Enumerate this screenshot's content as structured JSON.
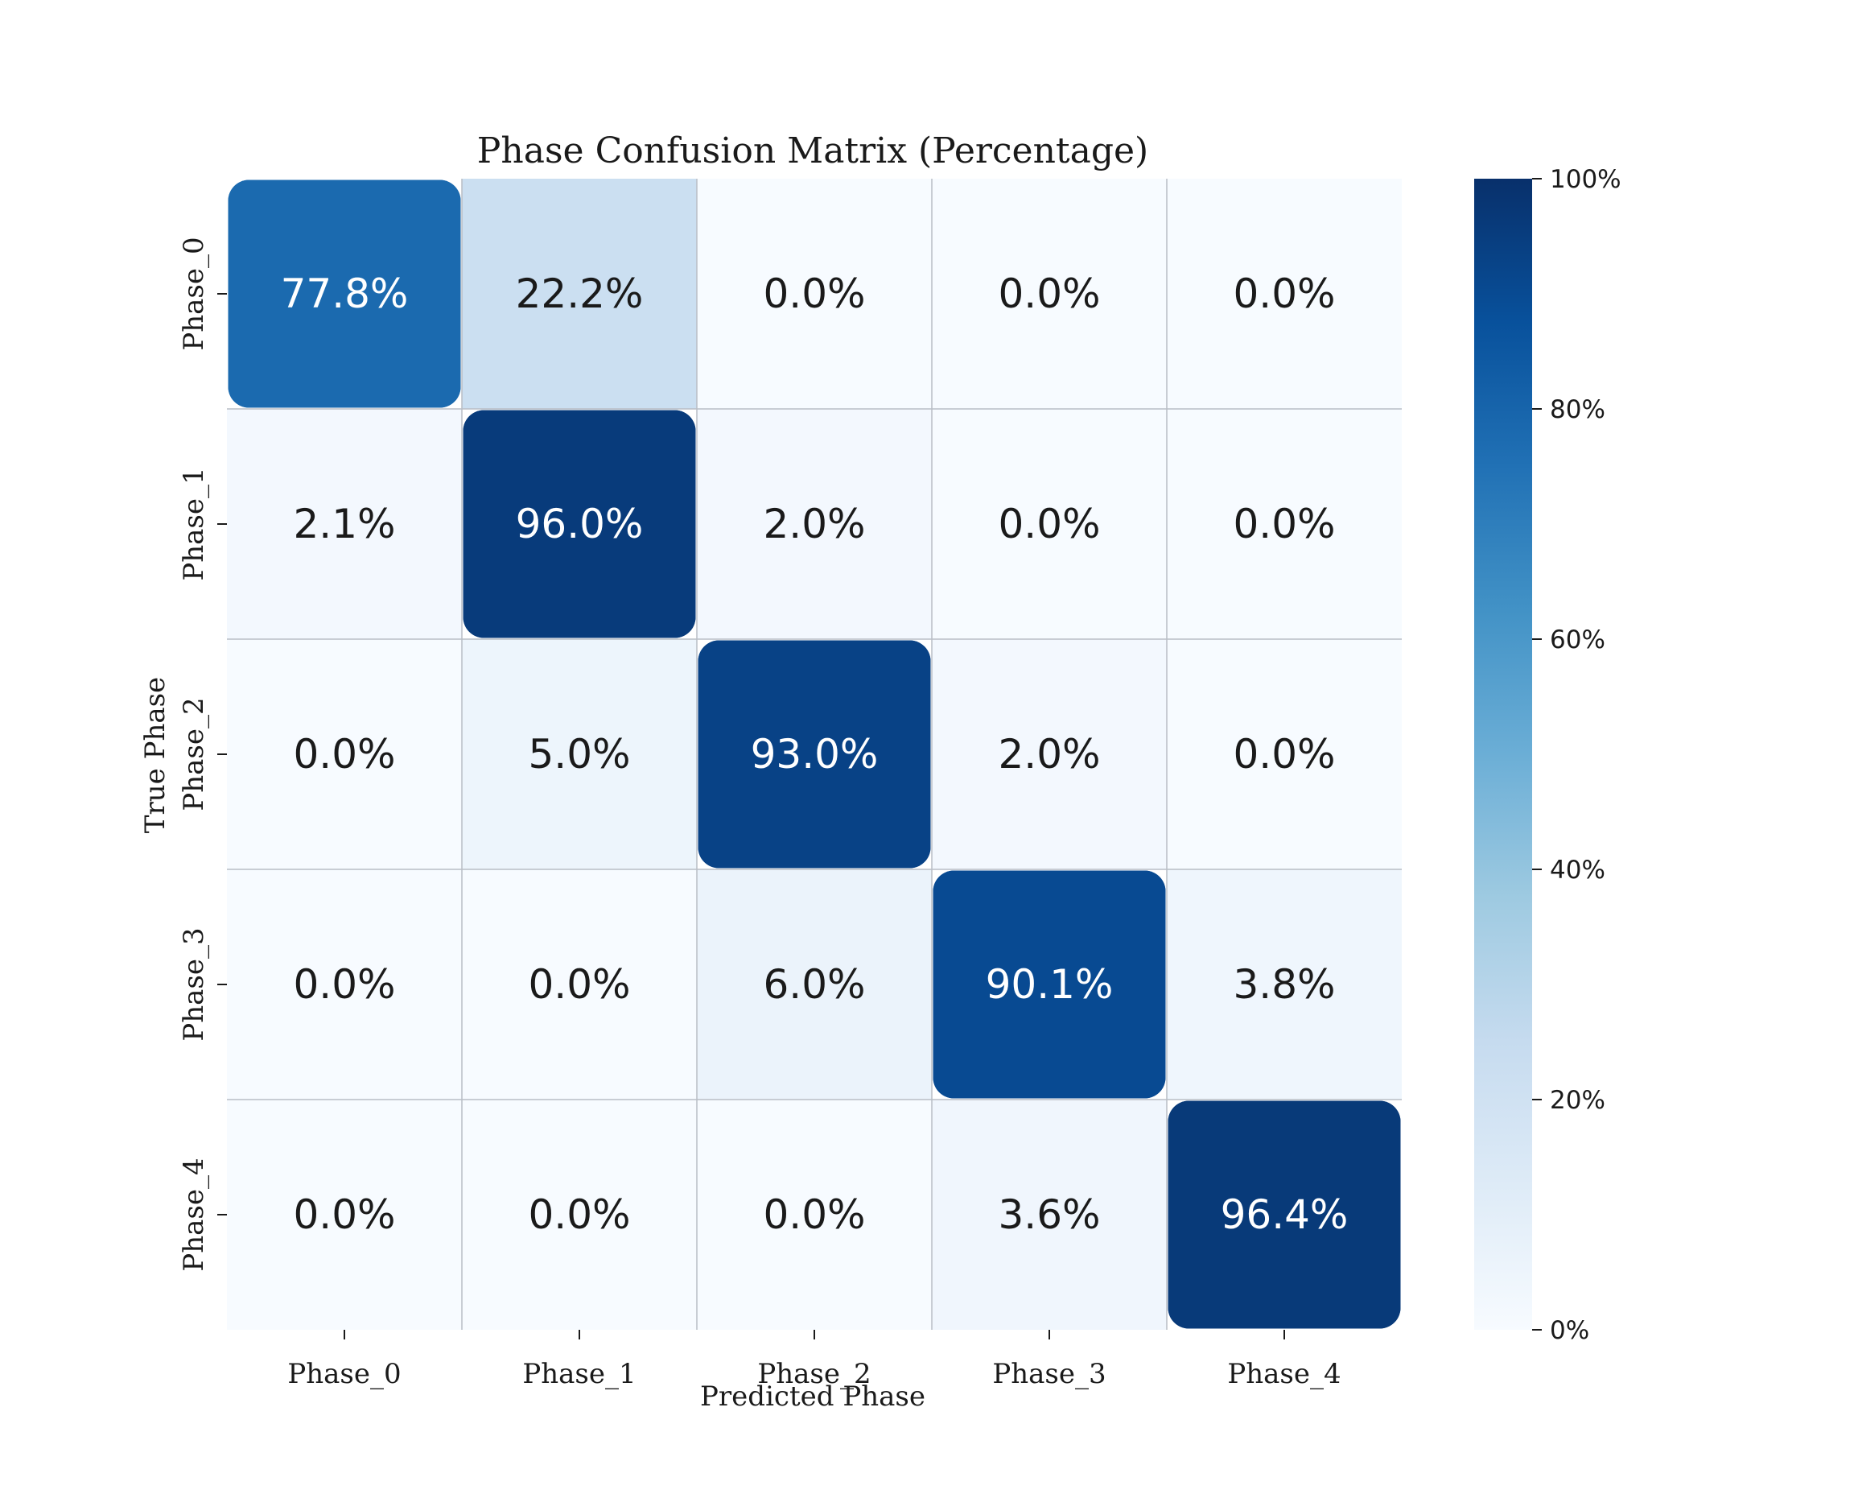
{
  "chart_data": {
    "type": "heatmap",
    "title": "Phase Confusion Matrix (Percentage)",
    "xlabel": "Predicted Phase",
    "ylabel": "True Phase",
    "x_categories": [
      "Phase_0",
      "Phase_1",
      "Phase_2",
      "Phase_3",
      "Phase_4"
    ],
    "y_categories": [
      "Phase_0",
      "Phase_1",
      "Phase_2",
      "Phase_3",
      "Phase_4"
    ],
    "values": [
      [
        77.8,
        22.2,
        0.0,
        0.0,
        0.0
      ],
      [
        2.1,
        96.0,
        2.0,
        0.0,
        0.0
      ],
      [
        0.0,
        5.0,
        93.0,
        2.0,
        0.0
      ],
      [
        0.0,
        0.0,
        6.0,
        90.1,
        3.8
      ],
      [
        0.0,
        0.0,
        0.0,
        3.6,
        96.4
      ]
    ],
    "cell_labels": [
      [
        "77.8%",
        "22.2%",
        "0.0%",
        "0.0%",
        "0.0%"
      ],
      [
        "2.1%",
        "96.0%",
        "2.0%",
        "0.0%",
        "0.0%"
      ],
      [
        "0.0%",
        "5.0%",
        "93.0%",
        "2.0%",
        "0.0%"
      ],
      [
        "0.0%",
        "0.0%",
        "6.0%",
        "90.1%",
        "3.8%"
      ],
      [
        "0.0%",
        "0.0%",
        "0.0%",
        "3.6%",
        "96.4%"
      ]
    ],
    "value_range": [
      0,
      100
    ],
    "colormap": "Blues",
    "colorbar": {
      "ticks": [
        0,
        20,
        40,
        60,
        80,
        100
      ],
      "tick_labels": [
        "0%",
        "20%",
        "40%",
        "60%",
        "80%",
        "100%"
      ],
      "placement": "right"
    },
    "grid": true
  }
}
